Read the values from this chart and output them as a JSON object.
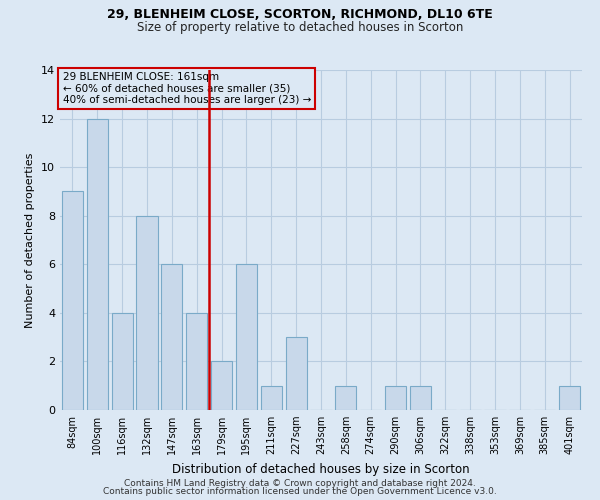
{
  "title1": "29, BLENHEIM CLOSE, SCORTON, RICHMOND, DL10 6TE",
  "title2": "Size of property relative to detached houses in Scorton",
  "xlabel": "Distribution of detached houses by size in Scorton",
  "ylabel": "Number of detached properties",
  "categories": [
    "84sqm",
    "100sqm",
    "116sqm",
    "132sqm",
    "147sqm",
    "163sqm",
    "179sqm",
    "195sqm",
    "211sqm",
    "227sqm",
    "243sqm",
    "258sqm",
    "274sqm",
    "290sqm",
    "306sqm",
    "322sqm",
    "338sqm",
    "353sqm",
    "369sqm",
    "385sqm",
    "401sqm"
  ],
  "values": [
    9,
    12,
    4,
    8,
    6,
    4,
    2,
    6,
    1,
    3,
    0,
    1,
    0,
    1,
    1,
    0,
    0,
    0,
    0,
    0,
    1
  ],
  "bar_color": "#c8d8ea",
  "bar_edge_color": "#7aaac8",
  "highlight_index": 5,
  "highlight_line_color": "#cc0000",
  "annotation_lines": [
    "29 BLENHEIM CLOSE: 161sqm",
    "← 60% of detached houses are smaller (35)",
    "40% of semi-detached houses are larger (23) →"
  ],
  "annotation_box_color": "#cc0000",
  "ylim": [
    0,
    14
  ],
  "yticks": [
    0,
    2,
    4,
    6,
    8,
    10,
    12,
    14
  ],
  "grid_color": "#b8cce0",
  "bg_color": "#dce8f4",
  "footer1": "Contains HM Land Registry data © Crown copyright and database right 2024.",
  "footer2": "Contains public sector information licensed under the Open Government Licence v3.0."
}
